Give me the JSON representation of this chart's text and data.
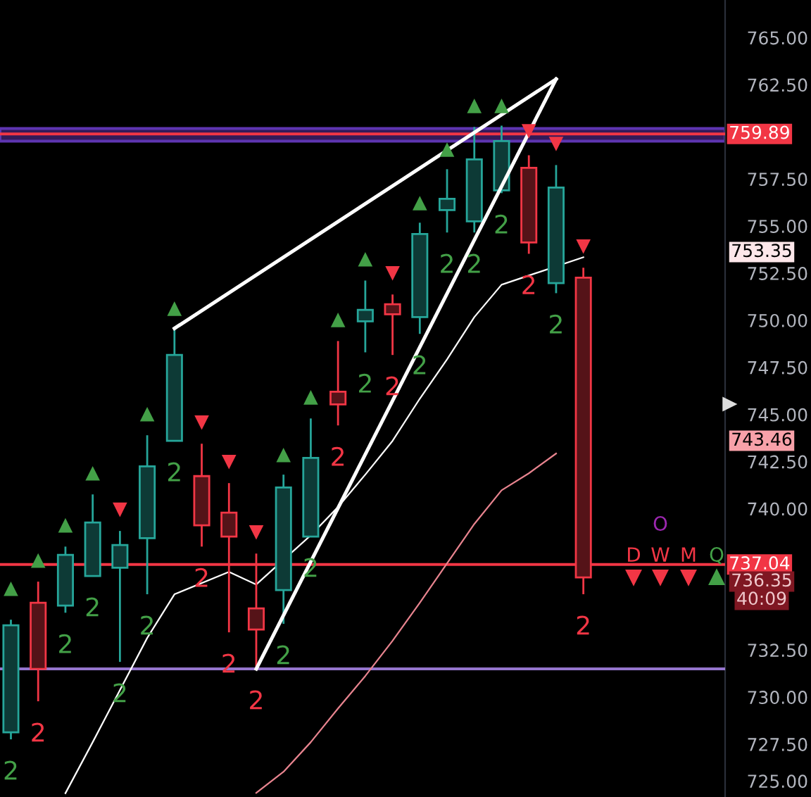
{
  "chart_data": {
    "type": "candlestick",
    "categories": [
      null,
      null,
      null,
      null,
      null,
      null,
      null,
      null,
      null,
      null,
      null,
      null,
      null,
      null,
      null,
      null,
      null,
      null,
      null,
      null,
      null,
      null
    ],
    "ohlc": [
      [
        728.13,
        734.11,
        727.76,
        733.81
      ],
      [
        735.01,
        736.13,
        729.78,
        731.5
      ],
      [
        734.86,
        737.99,
        734.48,
        737.55
      ],
      [
        736.43,
        740.76,
        736.43,
        739.27
      ],
      [
        736.87,
        738.82,
        731.87,
        738.07
      ],
      [
        738.44,
        743.9,
        735.46,
        742.25
      ],
      [
        743.6,
        749.57,
        743.6,
        748.16
      ],
      [
        741.73,
        743.45,
        737.99,
        739.12
      ],
      [
        739.79,
        741.36,
        733.44,
        738.52
      ],
      [
        734.71,
        737.62,
        731.5,
        733.59
      ],
      [
        735.68,
        741.81,
        733.89,
        741.13
      ],
      [
        738.52,
        744.79,
        738.52,
        742.7
      ],
      [
        746.21,
        748.9,
        744.42,
        745.54
      ],
      [
        749.95,
        752.11,
        748.3,
        750.55
      ],
      [
        750.85,
        751.37,
        748.16,
        750.32
      ],
      [
        750.17,
        755.18,
        749.28,
        754.58
      ],
      [
        755.85,
        758.02,
        754.66,
        756.45
      ],
      [
        755.25,
        760.26,
        754.66,
        758.54
      ],
      [
        756.9,
        760.33,
        756.75,
        759.51
      ],
      [
        758.09,
        758.76,
        753.53,
        754.13
      ],
      [
        751.97,
        758.24,
        751.44,
        757.05
      ],
      [
        752.26,
        752.79,
        735.46,
        736.35
      ]
    ],
    "colors": [
      "#26a69a",
      "#f23645",
      "#26a69a",
      "#26a69a",
      "#26a69a",
      "#26a69a",
      "#26a69a",
      "#f23645",
      "#f23645",
      "#f23645",
      "#26a69a",
      "#26a69a",
      "#f23645",
      "#26a69a",
      "#f23645",
      "#26a69a",
      "#26a69a",
      "#26a69a",
      "#26a69a",
      "#f23645",
      "#26a69a",
      "#f23645"
    ],
    "series": [
      {
        "type": "line",
        "color": "#ffffff",
        "values": [
          null,
          null,
          724.9,
          727.61,
          null,
          733.14,
          735.46,
          null,
          736.65,
          735.98,
          null,
          738.59,
          740.09,
          741.81,
          743.6,
          745.84,
          747.93,
          750.17,
          751.89,
          null,
          null,
          753.35
        ]
      },
      {
        "type": "line",
        "color": "#e8848f",
        "values": [
          null,
          null,
          null,
          null,
          null,
          null,
          null,
          null,
          null,
          724.92,
          726.04,
          727.61,
          729.4,
          731.12,
          732.99,
          735.01,
          737.1,
          739.19,
          740.98,
          741.88,
          742.93,
          null
        ]
      },
      {
        "type": "line",
        "color": "#ffffff",
        "values": [
          null,
          null,
          null,
          null,
          null,
          null,
          749.57,
          null,
          null,
          null,
          null,
          null,
          null,
          null,
          null,
          null,
          null,
          null,
          null,
          null,
          762.8,
          null
        ]
      },
      {
        "type": "line",
        "color": "#ffffff",
        "values": [
          null,
          null,
          null,
          null,
          null,
          null,
          null,
          null,
          null,
          731.5,
          null,
          null,
          null,
          null,
          null,
          null,
          null,
          null,
          null,
          null,
          762.8,
          null
        ]
      },
      {
        "type": "scatter",
        "marker": "triangle",
        "color": "#43a047",
        "values": [
          735.75,
          737.25,
          739.12,
          741.88,
          null,
          745.02,
          750.62,
          null,
          null,
          null,
          742.85,
          745.91,
          750.02,
          753.24,
          null,
          756.22,
          759.06,
          761.38,
          761.38,
          null,
          null,
          null
        ]
      },
      {
        "type": "scatter",
        "marker": "triangle_down",
        "color": "#f23645",
        "values": [
          null,
          null,
          null,
          null,
          739.94,
          null,
          null,
          744.57,
          742.48,
          738.74,
          null,
          null,
          null,
          null,
          752.49,
          null,
          null,
          null,
          null,
          760.03,
          759.36,
          753.91
        ]
      }
    ],
    "ylim": [
      724.7,
      767.0
    ],
    "yticks": [
      {
        "value": 725,
        "label": "725.00"
      },
      {
        "value": 727.5,
        "label": "727.50"
      },
      {
        "value": 730,
        "label": "730.00"
      },
      {
        "value": 732.5,
        "label": "732.50"
      },
      {
        "value": 740,
        "label": "740.00"
      },
      {
        "value": 742.5,
        "label": "742.50"
      },
      {
        "value": 745,
        "label": "745.00"
      },
      {
        "value": 747.5,
        "label": "747.50"
      },
      {
        "value": 750,
        "label": "750.00"
      },
      {
        "value": 752.5,
        "label": "752.50"
      },
      {
        "value": 755,
        "label": "755.00"
      },
      {
        "value": 757.5,
        "label": "757.50"
      },
      {
        "value": 762.5,
        "label": "762.50"
      },
      {
        "value": 765,
        "label": "765.00"
      }
    ],
    "ref_lines": [
      {
        "axis": "y",
        "value": 759.89,
        "label": "759.89",
        "color": "#f23645"
      },
      {
        "axis": "y",
        "value": 737.04,
        "label": "737.04",
        "color": "#f23645"
      },
      {
        "axis": "y",
        "value": 731.5,
        "label": null,
        "color": "#9575cd"
      }
    ],
    "bands": [
      {
        "axis": "y",
        "from": 759.51,
        "to": 760.18,
        "color": "#5e35b1"
      }
    ],
    "annotations": [
      "2",
      "2",
      "2",
      "2",
      "2",
      "2",
      "2",
      "2",
      "2",
      "2",
      "2",
      "2",
      "2",
      "2",
      "2",
      "2",
      "2",
      "2",
      "2",
      "2",
      "2",
      "2",
      "753.35",
      "743.46",
      "736.35",
      "40:09",
      "O",
      "D",
      "W",
      "M",
      "Q"
    ]
  }
}
